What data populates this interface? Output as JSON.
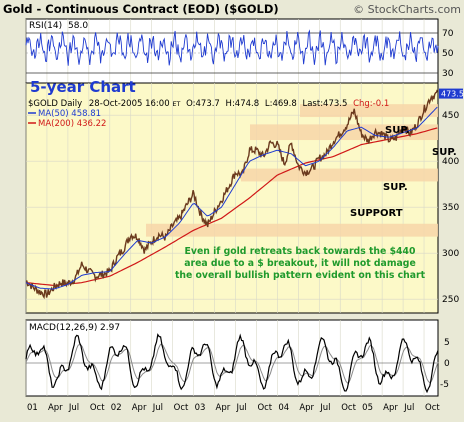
{
  "header": {
    "title": "Gold - Continuous Contract (EOD) ($GOLD)",
    "watermark": "© StockCharts.com"
  },
  "rsi_panel": {
    "label": "RSI(14)",
    "value": "58.0",
    "levels": [
      "70",
      "50",
      "30"
    ]
  },
  "price_panel": {
    "banner": "5-year Chart",
    "info": {
      "symbol_period": "$GOLD Daily",
      "date": "28-Oct-2005 16:00",
      "et": "ET",
      "open": "O:473.7",
      "high": "H:474.8",
      "low": "L:469.8",
      "last": "Last:473.5",
      "chg": "Chg:-0.1"
    },
    "ma50_label": "MA(50) 458.81",
    "ma200_label": "MA(200) 436.22",
    "y_ticks": [
      "450",
      "400",
      "350",
      "300",
      "250"
    ],
    "last_price_tag": "473.5",
    "zones": [
      {
        "label": "SUP.",
        "low": 448,
        "high": 462
      },
      {
        "label": "SUP.",
        "low": 423,
        "high": 440
      },
      {
        "label": "SUP.",
        "low": 378,
        "high": 392
      },
      {
        "label": "SUPPORT",
        "low": 318,
        "high": 332
      }
    ],
    "annotation": [
      "Even if gold retreats back towards the $440",
      "area due to a $ breakout, it will not damage",
      "the overall bullish pattern evident on this chart"
    ]
  },
  "macd_panel": {
    "label": "MACD(12,26,9)",
    "value": "2.97",
    "y_ticks": [
      "5",
      "0",
      "-5"
    ]
  },
  "x_axis": {
    "labels": [
      "01",
      "Apr",
      "Jul",
      "Oct",
      "02",
      "Apr",
      "Jul",
      "Oct",
      "03",
      "Apr",
      "Jul",
      "Oct",
      "04",
      "Apr",
      "Jul",
      "Oct",
      "05",
      "Apr",
      "Jul",
      "Oct"
    ]
  },
  "chart_data": {
    "type": "line",
    "title": "Gold - Continuous Contract (EOD) ($GOLD)",
    "xlabel": "",
    "ylabel": "",
    "x_range": [
      "2001-01",
      "2005-10"
    ],
    "ylim": [
      235,
      485
    ],
    "grid": true,
    "colors": {
      "price": "#6b3a1e",
      "ma50": "#1f3bd0",
      "ma200": "#d01818",
      "zone": "#f7d6a8",
      "rsi": "#1f3bd0",
      "macd": "#000000",
      "macd_signal": "#8a8a8a"
    },
    "price_series": [
      {
        "t": 0.0,
        "v": 270
      },
      {
        "t": 1.0,
        "v": 263
      },
      {
        "t": 2.0,
        "v": 258
      },
      {
        "t": 3.0,
        "v": 255
      },
      {
        "t": 4.0,
        "v": 263
      },
      {
        "t": 5.0,
        "v": 268
      },
      {
        "t": 6.0,
        "v": 267
      },
      {
        "t": 7.0,
        "v": 272
      },
      {
        "t": 8.0,
        "v": 288
      },
      {
        "t": 9.0,
        "v": 280
      },
      {
        "t": 10.0,
        "v": 275
      },
      {
        "t": 11.0,
        "v": 277
      },
      {
        "t": 12.0,
        "v": 280
      },
      {
        "t": 13.0,
        "v": 295
      },
      {
        "t": 14.0,
        "v": 305
      },
      {
        "t": 15.0,
        "v": 320
      },
      {
        "t": 16.0,
        "v": 318
      },
      {
        "t": 17.0,
        "v": 303
      },
      {
        "t": 18.0,
        "v": 313
      },
      {
        "t": 19.0,
        "v": 320
      },
      {
        "t": 20.0,
        "v": 317
      },
      {
        "t": 21.0,
        "v": 330
      },
      {
        "t": 22.0,
        "v": 338
      },
      {
        "t": 23.0,
        "v": 352
      },
      {
        "t": 24.0,
        "v": 365
      },
      {
        "t": 25.0,
        "v": 343
      },
      {
        "t": 26.0,
        "v": 330
      },
      {
        "t": 27.0,
        "v": 345
      },
      {
        "t": 28.0,
        "v": 358
      },
      {
        "t": 29.0,
        "v": 372
      },
      {
        "t": 30.0,
        "v": 388
      },
      {
        "t": 31.0,
        "v": 385
      },
      {
        "t": 32.0,
        "v": 412
      },
      {
        "t": 33.0,
        "v": 412
      },
      {
        "t": 34.0,
        "v": 405
      },
      {
        "t": 35.0,
        "v": 420
      },
      {
        "t": 36.0,
        "v": 418
      },
      {
        "t": 37.0,
        "v": 397
      },
      {
        "t": 38.0,
        "v": 420
      },
      {
        "t": 39.0,
        "v": 395
      },
      {
        "t": 40.0,
        "v": 388
      },
      {
        "t": 41.0,
        "v": 392
      },
      {
        "t": 42.0,
        "v": 403
      },
      {
        "t": 43.0,
        "v": 408
      },
      {
        "t": 44.0,
        "v": 422
      },
      {
        "t": 45.0,
        "v": 430
      },
      {
        "t": 46.0,
        "v": 440
      },
      {
        "t": 47.0,
        "v": 455
      },
      {
        "t": 48.0,
        "v": 430
      },
      {
        "t": 49.0,
        "v": 422
      },
      {
        "t": 50.0,
        "v": 432
      },
      {
        "t": 51.0,
        "v": 430
      },
      {
        "t": 52.0,
        "v": 423
      },
      {
        "t": 53.0,
        "v": 425
      },
      {
        "t": 54.0,
        "v": 438
      },
      {
        "t": 55.0,
        "v": 430
      },
      {
        "t": 56.0,
        "v": 440
      },
      {
        "t": 57.0,
        "v": 456
      },
      {
        "t": 58.0,
        "v": 470
      },
      {
        "t": 58.9,
        "v": 473.5
      }
    ],
    "ma50_series": [
      {
        "t": 0.0,
        "v": 268
      },
      {
        "t": 2.0,
        "v": 262
      },
      {
        "t": 4.0,
        "v": 261
      },
      {
        "t": 6.0,
        "v": 266
      },
      {
        "t": 8.0,
        "v": 276
      },
      {
        "t": 10.0,
        "v": 279
      },
      {
        "t": 12.0,
        "v": 280
      },
      {
        "t": 14.0,
        "v": 298
      },
      {
        "t": 16.0,
        "v": 314
      },
      {
        "t": 18.0,
        "v": 311
      },
      {
        "t": 20.0,
        "v": 318
      },
      {
        "t": 22.0,
        "v": 333
      },
      {
        "t": 24.0,
        "v": 355
      },
      {
        "t": 26.0,
        "v": 340
      },
      {
        "t": 28.0,
        "v": 350
      },
      {
        "t": 30.0,
        "v": 375
      },
      {
        "t": 32.0,
        "v": 400
      },
      {
        "t": 34.0,
        "v": 407
      },
      {
        "t": 36.0,
        "v": 412
      },
      {
        "t": 38.0,
        "v": 408
      },
      {
        "t": 40.0,
        "v": 395
      },
      {
        "t": 42.0,
        "v": 400
      },
      {
        "t": 44.0,
        "v": 415
      },
      {
        "t": 46.0,
        "v": 433
      },
      {
        "t": 48.0,
        "v": 437
      },
      {
        "t": 50.0,
        "v": 428
      },
      {
        "t": 52.0,
        "v": 426
      },
      {
        "t": 54.0,
        "v": 431
      },
      {
        "t": 56.0,
        "v": 436
      },
      {
        "t": 58.9,
        "v": 458.81
      }
    ],
    "ma200_series": [
      {
        "t": 0.0,
        "v": 268
      },
      {
        "t": 4.0,
        "v": 265
      },
      {
        "t": 8.0,
        "v": 268
      },
      {
        "t": 12.0,
        "v": 275
      },
      {
        "t": 16.0,
        "v": 290
      },
      {
        "t": 20.0,
        "v": 307
      },
      {
        "t": 24.0,
        "v": 325
      },
      {
        "t": 28.0,
        "v": 338
      },
      {
        "t": 32.0,
        "v": 360
      },
      {
        "t": 36.0,
        "v": 385
      },
      {
        "t": 40.0,
        "v": 398
      },
      {
        "t": 44.0,
        "v": 405
      },
      {
        "t": 48.0,
        "v": 418
      },
      {
        "t": 52.0,
        "v": 424
      },
      {
        "t": 56.0,
        "v": 430
      },
      {
        "t": 58.9,
        "v": 436.22
      }
    ],
    "rsi_last": 58.0,
    "macd_last": 2.97
  }
}
